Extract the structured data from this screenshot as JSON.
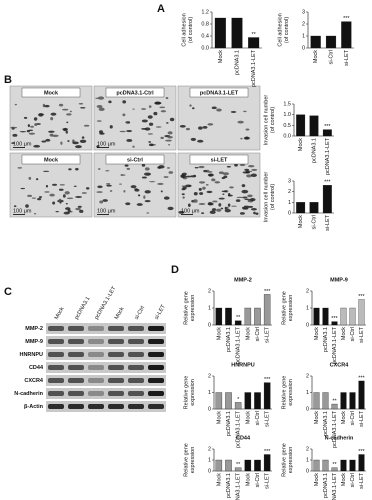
{
  "panel_labels": [
    "A",
    "B",
    "C",
    "D"
  ],
  "chart_data": [
    {
      "type": "bar",
      "y_label": [
        "Cell adhesion",
        "(of control)"
      ],
      "categories": [
        "Mock",
        "pcDNA3.1",
        "pcDNA3.1-LET"
      ],
      "values": [
        1,
        1,
        0.35
      ],
      "color": "#111111",
      "annotations": [
        null,
        null,
        "**"
      ],
      "ylim": [
        0,
        1.2
      ],
      "yticks": [
        {
          "value": 0,
          "label": "0.0"
        },
        {
          "value": 0.4,
          "label": "0.4"
        },
        {
          "value": 0.8,
          "label": "0.8"
        },
        {
          "value": 1.2,
          "label": "1.2"
        }
      ]
    },
    {
      "type": "bar",
      "y_label": [
        "Cell adhesion",
        "(of control)"
      ],
      "categories": [
        "Mock",
        "si-Ctrl",
        "si-LET"
      ],
      "values": [
        1,
        1,
        2.2
      ],
      "color": "#111111",
      "annotations": [
        null,
        null,
        "***"
      ],
      "ylim": [
        0,
        3
      ],
      "yticks": [
        0,
        1,
        2,
        3
      ]
    },
    {
      "type": "bar",
      "y_label": [
        "Invasion cell number",
        "(of control)"
      ],
      "categories": [
        "Mock",
        "pcDNA3.1",
        "pcDNA3.1-LET"
      ],
      "values": [
        1,
        0.95,
        0.3
      ],
      "color": "#111111",
      "annotations": [
        null,
        null,
        "***"
      ],
      "ylim": [
        0,
        1.5
      ],
      "yticks": [
        {
          "value": 0,
          "label": "0.0"
        },
        {
          "value": 0.5,
          "label": "0.5"
        },
        {
          "value": 1,
          "label": "1.0"
        },
        {
          "value": 1.5,
          "label": "1.5"
        }
      ]
    },
    {
      "type": "bar",
      "y_label": [
        "Invasion cell number",
        "(of control)"
      ],
      "categories": [
        "Mock",
        "si-Ctrl",
        "si-LET"
      ],
      "values": [
        1,
        1,
        2.6
      ],
      "color": "#111111",
      "annotations": [
        null,
        null,
        "***"
      ],
      "ylim": [
        0,
        3
      ],
      "yticks": [
        0,
        1,
        2,
        3
      ]
    },
    {
      "type": "bar",
      "title": "MMP-2",
      "y_label": [
        "Relative gene",
        "expression"
      ],
      "categories": [
        "Mock",
        "pcDNA3.1",
        "pcDNA3.1-LET",
        "Mock",
        "si-Ctrl",
        "si-LET"
      ],
      "values": [
        1,
        1,
        0.25,
        1,
        1,
        1.8
      ],
      "colors": [
        "#111111",
        "#111111",
        "#111111",
        "#999999",
        "#999999",
        "#999999"
      ],
      "annotations": [
        null,
        null,
        "**",
        null,
        null,
        "***"
      ],
      "ylim": [
        0,
        2
      ],
      "yticks": [
        0,
        1,
        2
      ]
    },
    {
      "type": "bar",
      "title": "MMP-9",
      "y_label": [
        "Relative gene",
        "expression"
      ],
      "categories": [
        "Mock",
        "pcDNA3.1",
        "pcDNA3.1-LET",
        "Mock",
        "si-Ctrl",
        "si-LET"
      ],
      "values": [
        1,
        1,
        0.2,
        1,
        1,
        1.5
      ],
      "colors": [
        "#111111",
        "#111111",
        "#111111",
        "#bbbbbb",
        "#bbbbbb",
        "#bbbbbb"
      ],
      "annotations": [
        null,
        null,
        "***",
        null,
        null,
        "***"
      ],
      "ylim": [
        0,
        2
      ],
      "yticks": [
        0,
        1,
        2
      ]
    },
    {
      "type": "bar",
      "title": "HNRNPU",
      "y_label": [
        "Relative gene",
        "expression"
      ],
      "categories": [
        "Mock",
        "pcDNA3.1",
        "pcDNA3.1-LET",
        "Mock",
        "si-Ctrl",
        "si-LET"
      ],
      "values": [
        1,
        1,
        0.4,
        1,
        1,
        1.6
      ],
      "colors": [
        "#999999",
        "#999999",
        "#999999",
        "#111111",
        "#111111",
        "#111111"
      ],
      "annotations": [
        null,
        null,
        "*",
        null,
        null,
        "***"
      ],
      "ylim": [
        0,
        2
      ],
      "yticks": [
        0,
        1,
        2
      ]
    },
    {
      "type": "bar",
      "title": "CXCR4",
      "y_label": [
        "Relative gene",
        "expression"
      ],
      "categories": [
        "Mock",
        "pcDNA3.1",
        "pcDNA3.1-LET",
        "Mock",
        "si-Ctrl",
        "si-LET"
      ],
      "values": [
        1,
        1,
        0.3,
        1,
        1,
        1.7
      ],
      "colors": [
        "#999999",
        "#999999",
        "#999999",
        "#111111",
        "#111111",
        "#111111"
      ],
      "annotations": [
        null,
        null,
        "**",
        null,
        null,
        "***"
      ],
      "ylim": [
        0,
        2
      ],
      "yticks": [
        0,
        1,
        2
      ]
    },
    {
      "type": "bar",
      "title": "CD44",
      "y_label": [
        "Relative gene",
        "expression"
      ],
      "categories": [
        "Mock",
        "pcDNA3.1",
        "pcDNA3.1-LET",
        "Mock",
        "si-Ctrl",
        "si-LET"
      ],
      "values": [
        1,
        1,
        0.3,
        1,
        1,
        1.5
      ],
      "colors": [
        "#999999",
        "#999999",
        "#999999",
        "#111111",
        "#111111",
        "#111111"
      ],
      "annotations": [
        null,
        null,
        "**",
        null,
        null,
        "***"
      ],
      "ylim": [
        0,
        2
      ],
      "yticks": [
        0,
        1,
        2
      ]
    },
    {
      "type": "bar",
      "title": "N-cadherin",
      "y_label": [
        "Relative gene",
        "expression"
      ],
      "categories": [
        "Mock",
        "pcDNA3.1",
        "pcDNA3.1-LET",
        "Mock",
        "si-Ctrl",
        "si-LET"
      ],
      "values": [
        1,
        1,
        0.3,
        1,
        1,
        1.5
      ],
      "colors": [
        "#999999",
        "#999999",
        "#999999",
        "#111111",
        "#111111",
        "#111111"
      ],
      "annotations": [
        null,
        null,
        "**",
        null,
        null,
        "***"
      ],
      "ylim": [
        0,
        2
      ],
      "yticks": [
        0,
        1,
        2
      ]
    }
  ],
  "micrographs": {
    "labels": [
      "Mock",
      "pcDNA3.1-Ctrl",
      "pcDNA3.1-LET",
      "Mock",
      "si-Ctrl",
      "si-LET"
    ],
    "scale_bar": "100 μm"
  },
  "western_blot": {
    "lanes": [
      "Mock",
      "pcDNA3.1",
      "pcDNA3.1-LET",
      "Mock",
      "si-Ctrl",
      "si-LET"
    ],
    "proteins": [
      "MMP-2",
      "MMP-9",
      "HNRNPU",
      "CD44",
      "CXCR4",
      "N-cadherin",
      "β-Actin"
    ]
  }
}
